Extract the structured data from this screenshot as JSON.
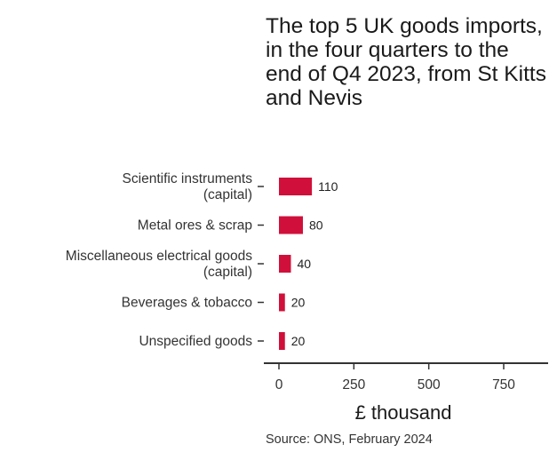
{
  "chart_data": {
    "type": "bar",
    "orientation": "horizontal",
    "title": "The top 5 UK goods imports, in the four quarters to the end of Q4 2023, from St Kitts and Nevis",
    "xlabel": "£ thousand",
    "ylabel": "",
    "categories": [
      "Scientific instruments\n(capital)",
      "Metal ores & scrap",
      "Miscellaneous electrical goods\n(capital)",
      "Beverages & tobacco",
      "Unspecified goods"
    ],
    "values": [
      110,
      80,
      40,
      20,
      20
    ],
    "value_labels": [
      "110",
      "80",
      "40",
      "20",
      "20"
    ],
    "xlim": [
      0,
      900
    ],
    "xticks": [
      0,
      250,
      500,
      750
    ],
    "xtick_labels": [
      "0",
      "250",
      "500",
      "750"
    ],
    "grid": false,
    "bar_color": "#d0103a",
    "source": "Source: ONS, February 2024"
  }
}
